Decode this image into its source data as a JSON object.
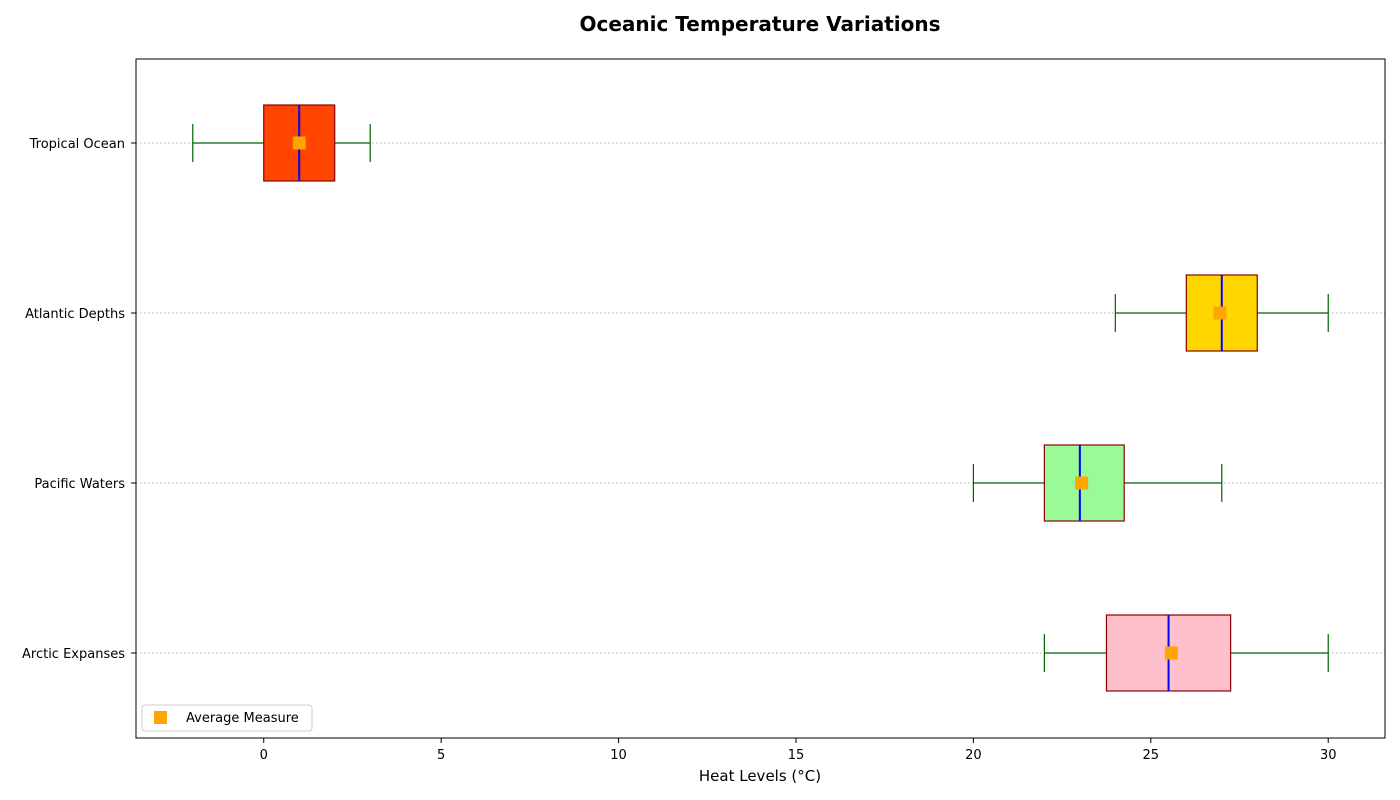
{
  "chart_data": {
    "type": "boxplot",
    "orientation": "horizontal",
    "title": "Oceanic Temperature Variations",
    "xlabel": "Heat Levels (°C)",
    "ylabel": "",
    "xlim": [
      -3.6,
      31.6
    ],
    "x_ticks": [
      0,
      5,
      10,
      15,
      20,
      25,
      30
    ],
    "grid": "horizontal dotted lines at categories",
    "legend_position": "lower-left",
    "legend": [
      {
        "label": "Average Measure",
        "marker": "square",
        "color": "#FFA500"
      }
    ],
    "categories": [
      "Arctic Expanses",
      "Pacific Waters",
      "Atlantic Depths",
      "Tropical Ocean"
    ],
    "boxes": [
      {
        "category": "Arctic Expanses",
        "min": 22,
        "q1": 23.75,
        "median": 25.5,
        "q3": 27.25,
        "max": 30,
        "mean": 25.58,
        "fill": "#FFC0CB"
      },
      {
        "category": "Pacific Waters",
        "min": 20,
        "q1": 22,
        "median": 23,
        "q3": 24.25,
        "max": 27,
        "mean": 23.05,
        "fill": "#98FB98"
      },
      {
        "category": "Atlantic Depths",
        "min": 24,
        "q1": 26,
        "median": 27,
        "q3": 28,
        "max": 30,
        "mean": 26.95,
        "fill": "#FFD700"
      },
      {
        "category": "Tropical Ocean",
        "min": -2,
        "q1": 0,
        "median": 1,
        "q3": 2,
        "max": 3,
        "mean": 1,
        "fill": "#FF4500"
      }
    ],
    "colors": {
      "box_edge": "#8B0000",
      "median": "#0000FF",
      "whisker": "#006400",
      "mean_marker": "#FFA500",
      "grid": "#b0b0b0"
    }
  }
}
